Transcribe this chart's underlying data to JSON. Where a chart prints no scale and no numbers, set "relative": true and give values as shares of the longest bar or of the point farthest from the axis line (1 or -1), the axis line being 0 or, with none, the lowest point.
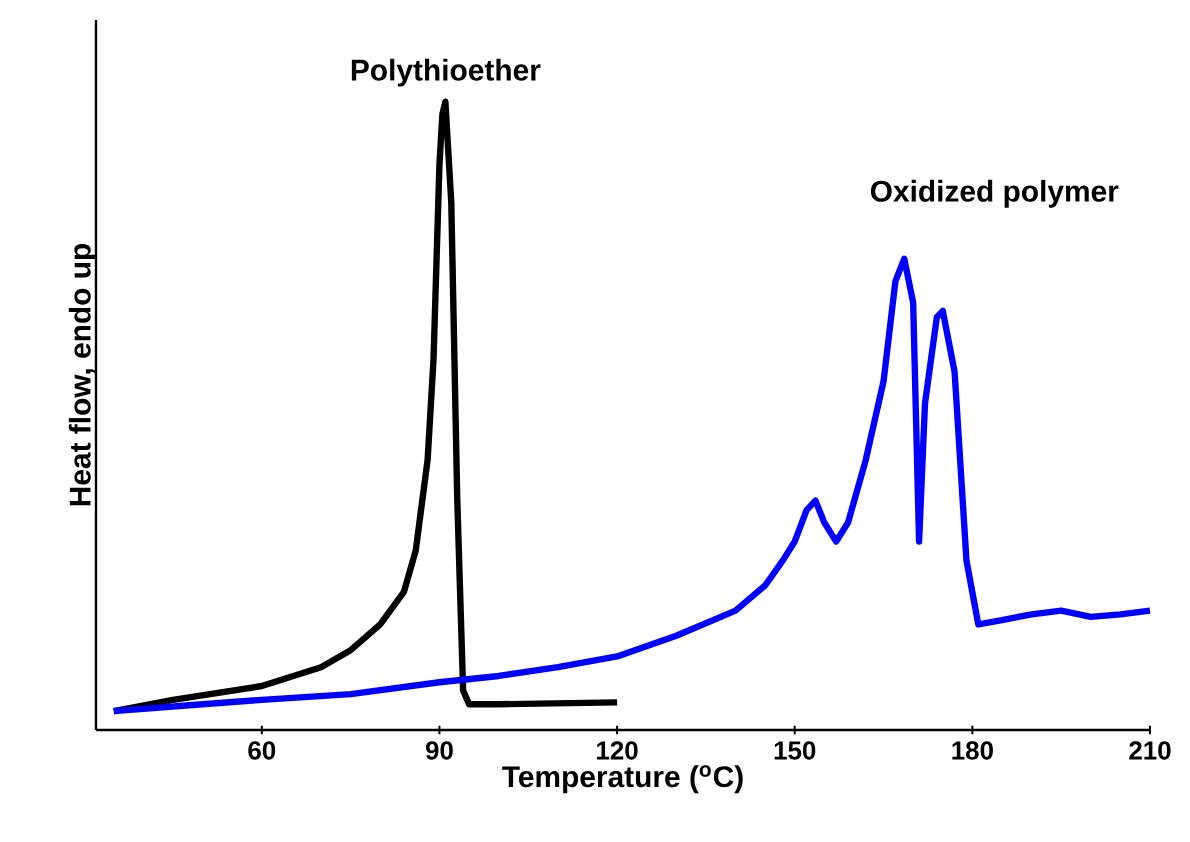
{
  "chart_data": {
    "type": "line",
    "relative": true,
    "xlabel": "Temperature ($^{o}$C)",
    "ylabel": "Heat flow, endo up",
    "xlim": [
      32,
      210
    ],
    "xticks": [
      60,
      90,
      120,
      150,
      180,
      210
    ],
    "marker": "none",
    "line_style": "solid",
    "series": [
      {
        "name": "Polythioether",
        "color": "#000000",
        "x": [
          35,
          45,
          60,
          70,
          75,
          80,
          84,
          86,
          88,
          89,
          90,
          90.5,
          91,
          92,
          93,
          94,
          95,
          100,
          120
        ],
        "values": [
          0.03,
          0.048,
          0.07,
          0.1,
          0.127,
          0.168,
          0.22,
          0.286,
          0.43,
          0.59,
          0.9,
          0.98,
          1,
          0.84,
          0.37,
          0.063,
          0.041,
          0.041,
          0.044
        ]
      },
      {
        "name": "Oxidized polymer",
        "color": "#0000ff",
        "x": [
          35,
          50,
          60,
          75,
          90,
          100,
          110,
          120,
          130,
          140,
          145,
          148,
          150,
          152,
          153.5,
          155,
          157,
          159,
          162,
          165,
          167,
          168.5,
          170,
          171,
          172,
          174,
          175,
          177,
          179,
          181,
          185,
          190,
          195,
          200,
          205,
          210
        ],
        "values": [
          0.03,
          0.041,
          0.048,
          0.057,
          0.076,
          0.086,
          0.1,
          0.117,
          0.15,
          0.19,
          0.23,
          0.27,
          0.3,
          0.35,
          0.365,
          0.33,
          0.3,
          0.33,
          0.43,
          0.555,
          0.714,
          0.75,
          0.68,
          0.3,
          0.52,
          0.657,
          0.667,
          0.57,
          0.27,
          0.168,
          0.175,
          0.184,
          0.19,
          0.18,
          0.184,
          0.19
        ]
      }
    ]
  }
}
